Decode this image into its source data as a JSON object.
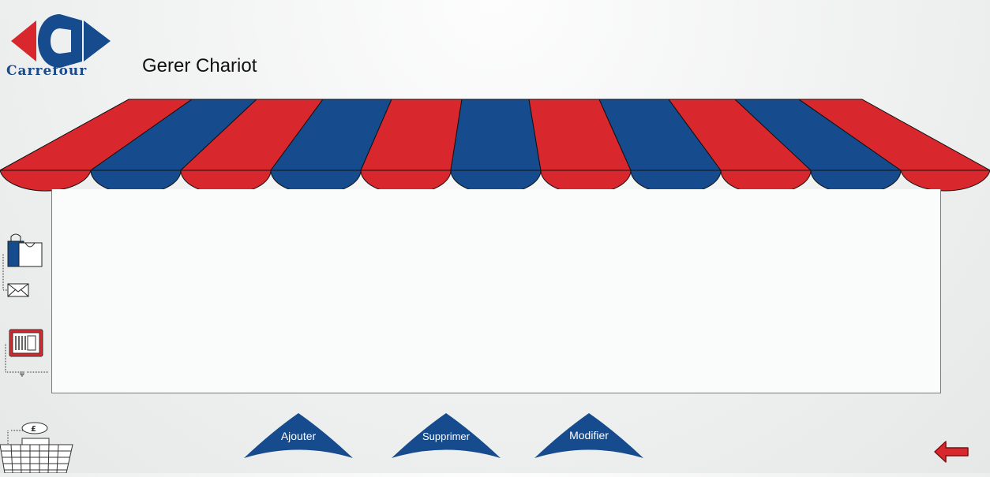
{
  "header": {
    "logo_text": "Carrefour",
    "title": "Gerer Chariot"
  },
  "actions": [
    {
      "label": "Ajouter"
    },
    {
      "label": "Supprimer"
    },
    {
      "label": "Modifier"
    }
  ],
  "sidebar": {
    "icons": [
      "shopping-bags-icon",
      "envelope-icon",
      "tablet-icon",
      "basket-icon",
      "pound-coin-icon"
    ],
    "basket_currency_symbol": "£"
  },
  "colors": {
    "brand_red": "#d9282d",
    "brand_blue": "#164b8e",
    "background": "#eeefef"
  }
}
